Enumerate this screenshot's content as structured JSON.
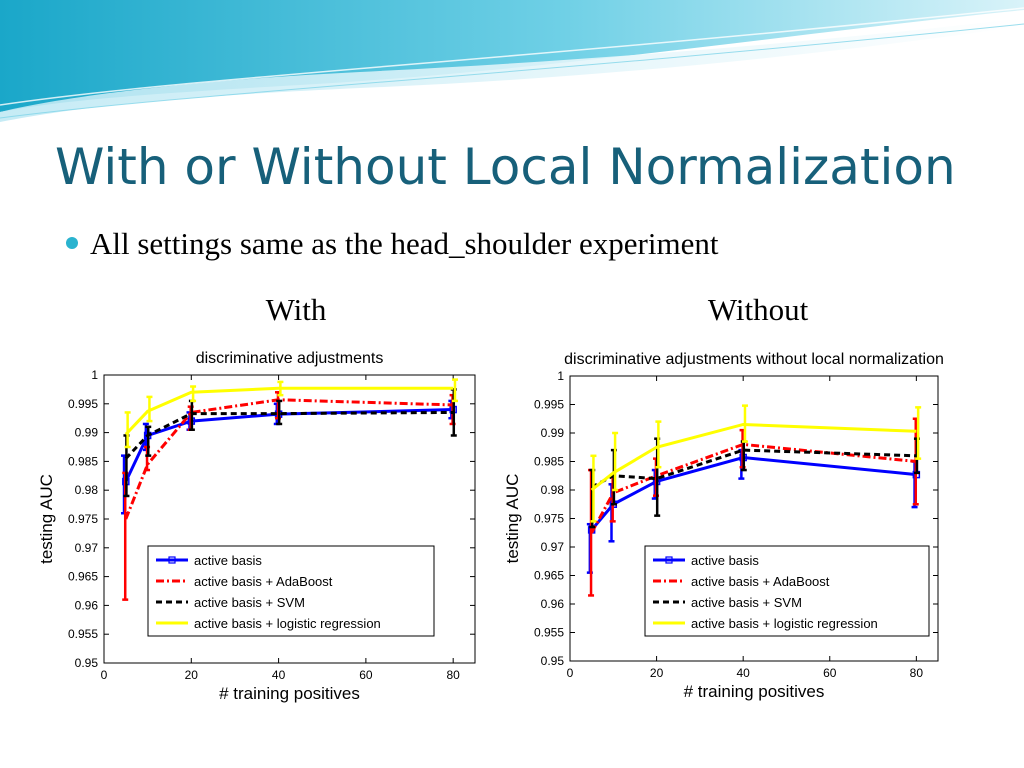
{
  "slide": {
    "title": "With or Without Local Normalization",
    "bullet": "All settings same as the head_shoulder experiment",
    "captions": [
      "With",
      "Without"
    ]
  },
  "chart_data": [
    {
      "type": "line",
      "title": "discriminative adjustments",
      "xlabel": "# training positives",
      "ylabel": "testing AUC",
      "xlim": [
        0,
        85
      ],
      "ylim": [
        0.95,
        1
      ],
      "xticks": [
        0,
        20,
        40,
        60,
        80
      ],
      "yticks": [
        0.95,
        0.955,
        0.96,
        0.965,
        0.97,
        0.975,
        0.98,
        0.985,
        0.99,
        0.995,
        1
      ],
      "ytick_labels": [
        "0.95",
        "0.955",
        "0.96",
        "0.965",
        "0.97",
        "0.975",
        "0.98",
        "0.985",
        "0.99",
        "0.995",
        "1"
      ],
      "xtick_labels": [
        "0",
        "20",
        "40",
        "60",
        "80"
      ],
      "grid": false,
      "legend_position": "lower-right",
      "x": [
        5,
        10,
        20,
        40,
        80
      ],
      "series": [
        {
          "name": "active basis",
          "color": "#0000ff",
          "dash": "solid",
          "marker": "square",
          "values": [
            0.9815,
            0.9895,
            0.992,
            0.9932,
            0.994
          ],
          "err_low": [
            0.976,
            0.987,
            0.9905,
            0.9915,
            0.9925
          ],
          "err_high": [
            0.986,
            0.9915,
            0.9935,
            0.995,
            0.9955
          ]
        },
        {
          "name": "active basis + AdaBoost",
          "color": "#ff0000",
          "dash": "dashdot",
          "marker": "none",
          "values": [
            0.975,
            0.9845,
            0.9935,
            0.9957,
            0.9948
          ],
          "err_low": [
            0.961,
            0.9835,
            0.9905,
            0.9925,
            0.9915
          ],
          "err_high": [
            0.983,
            0.9875,
            0.9945,
            0.997,
            0.9965
          ]
        },
        {
          "name": "active basis + SVM",
          "color": "#000000",
          "dash": "dashed",
          "marker": "none",
          "values": [
            0.9855,
            0.9895,
            0.9933,
            0.9933,
            0.9935
          ],
          "err_low": [
            0.979,
            0.986,
            0.9905,
            0.9915,
            0.9895
          ],
          "err_high": [
            0.9895,
            0.991,
            0.9955,
            0.9955,
            0.9975
          ]
        },
        {
          "name": "active basis + logistic regression",
          "color": "#ffff00",
          "dash": "solid",
          "marker": "none",
          "values": [
            0.9897,
            0.9937,
            0.997,
            0.9977,
            0.9977
          ],
          "err_low": [
            0.9875,
            0.992,
            0.9955,
            0.9965,
            0.9955
          ],
          "err_high": [
            0.9935,
            0.9962,
            0.998,
            0.9988,
            0.9992
          ]
        }
      ]
    },
    {
      "type": "line",
      "title": "discriminative adjustments without local normalization",
      "xlabel": "# training positives",
      "ylabel": "testing AUC",
      "xlim": [
        0,
        85
      ],
      "ylim": [
        0.95,
        1
      ],
      "xticks": [
        0,
        20,
        40,
        60,
        80
      ],
      "yticks": [
        0.95,
        0.955,
        0.96,
        0.965,
        0.97,
        0.975,
        0.98,
        0.985,
        0.99,
        0.995,
        1
      ],
      "ytick_labels": [
        "0.95",
        "0.955",
        "0.96",
        "0.965",
        "0.97",
        "0.975",
        "0.98",
        "0.985",
        "0.99",
        "0.995",
        "1"
      ],
      "xtick_labels": [
        "0",
        "20",
        "40",
        "60",
        "80"
      ],
      "grid": false,
      "legend_position": "lower-right",
      "x": [
        5,
        10,
        20,
        40,
        80
      ],
      "series": [
        {
          "name": "active basis",
          "color": "#0000ff",
          "dash": "solid",
          "marker": "square",
          "values": [
            0.973,
            0.9775,
            0.9815,
            0.9857,
            0.9827
          ],
          "err_low": [
            0.9655,
            0.971,
            0.9785,
            0.982,
            0.977
          ],
          "err_high": [
            0.974,
            0.981,
            0.9835,
            0.987,
            0.985
          ]
        },
        {
          "name": "active basis + AdaBoost",
          "color": "#ff0000",
          "dash": "dashdot",
          "marker": "none",
          "values": [
            0.9725,
            0.9795,
            0.9825,
            0.988,
            0.985
          ],
          "err_low": [
            0.9615,
            0.9745,
            0.979,
            0.984,
            0.9775
          ],
          "err_high": [
            0.9835,
            0.9825,
            0.9855,
            0.9905,
            0.9925
          ]
        },
        {
          "name": "active basis + SVM",
          "color": "#000000",
          "dash": "dashed",
          "marker": "none",
          "values": [
            0.9805,
            0.9825,
            0.982,
            0.987,
            0.986
          ],
          "err_low": [
            0.9735,
            0.9775,
            0.9755,
            0.9835,
            0.983
          ],
          "err_high": [
            0.9835,
            0.987,
            0.989,
            0.9885,
            0.989
          ]
        },
        {
          "name": "active basis + logistic regression",
          "color": "#ffff00",
          "dash": "solid",
          "marker": "none",
          "values": [
            0.98,
            0.983,
            0.9875,
            0.9915,
            0.9903
          ],
          "err_low": [
            0.9745,
            0.98,
            0.984,
            0.9885,
            0.9855
          ],
          "err_high": [
            0.986,
            0.99,
            0.992,
            0.9948,
            0.9945
          ]
        }
      ]
    }
  ]
}
